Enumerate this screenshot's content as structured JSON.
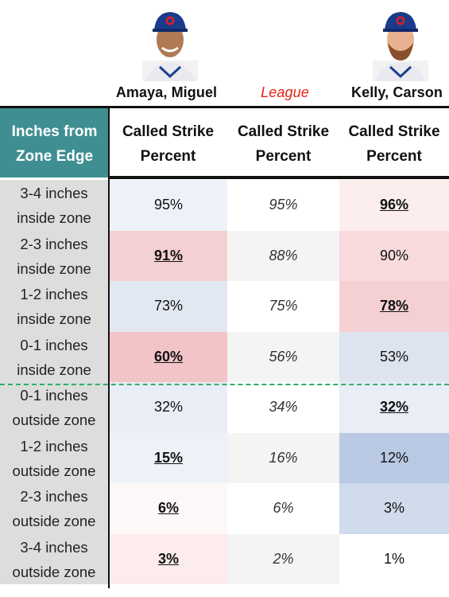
{
  "players": {
    "amaya": {
      "name": "Amaya, Miguel"
    },
    "league": {
      "name": "League"
    },
    "kelly": {
      "name": "Kelly, Carson"
    }
  },
  "header": {
    "first_col": "Inches from Zone Edge",
    "col1": "Called Strike Percent",
    "col2": "Called Strike Percent",
    "col3": "Called Strike Percent"
  },
  "rows": [
    {
      "label": "3-4 inches inside zone",
      "amaya": "95%",
      "league": "95%",
      "kelly": "96%",
      "amaya_bg": "#eef2f8",
      "league_bg": "#ffffff",
      "kelly_bg": "#fdeeee",
      "amaya_best": false,
      "kelly_best": true
    },
    {
      "label": "2-3 inches inside zone",
      "amaya": "91%",
      "league": "88%",
      "kelly": "90%",
      "amaya_bg": "#f5d0d2",
      "league_bg": "#f4f4f4",
      "kelly_bg": "#f8dadc",
      "amaya_best": true,
      "kelly_best": false
    },
    {
      "label": "1-2 inches inside zone",
      "amaya": "73%",
      "league": "75%",
      "kelly": "78%",
      "amaya_bg": "#e2e8f2",
      "league_bg": "#ffffff",
      "kelly_bg": "#f5d0d2",
      "amaya_best": false,
      "kelly_best": true
    },
    {
      "label": "0-1 inches inside zone",
      "amaya": "60%",
      "league": "56%",
      "kelly": "53%",
      "amaya_bg": "#f2c4c8",
      "league_bg": "#f4f4f4",
      "kelly_bg": "#dde4f0",
      "amaya_best": true,
      "kelly_best": false
    },
    {
      "label": "0-1 inches outside zone",
      "amaya": "32%",
      "league": "34%",
      "kelly": "32%",
      "amaya_bg": "#e9edf6",
      "league_bg": "#ffffff",
      "kelly_bg": "#e9edf6",
      "amaya_best": false,
      "kelly_best": true
    },
    {
      "label": "1-2 inches outside zone",
      "amaya": "15%",
      "league": "16%",
      "kelly": "12%",
      "amaya_bg": "#eef2f8",
      "league_bg": "#f4f4f4",
      "kelly_bg": "#b9c9e3",
      "amaya_best": true,
      "kelly_best": false
    },
    {
      "label": "2-3 inches outside zone",
      "amaya": "6%",
      "league": "6%",
      "kelly": "3%",
      "amaya_bg": "#fdf7f7",
      "league_bg": "#ffffff",
      "kelly_bg": "#d0dbec",
      "amaya_best": true,
      "kelly_best": false
    },
    {
      "label": "3-4 inches outside zone",
      "amaya": "3%",
      "league": "2%",
      "kelly": "1%",
      "amaya_bg": "#fcecec",
      "league_bg": "#f4f4f4",
      "kelly_bg": "#ffffff",
      "amaya_best": true,
      "kelly_best": false
    }
  ],
  "colors": {
    "header_teal": "#3f8f92",
    "league_red": "#e32119",
    "divider_green": "#2eae6b",
    "label_gray": "#dddddd"
  }
}
